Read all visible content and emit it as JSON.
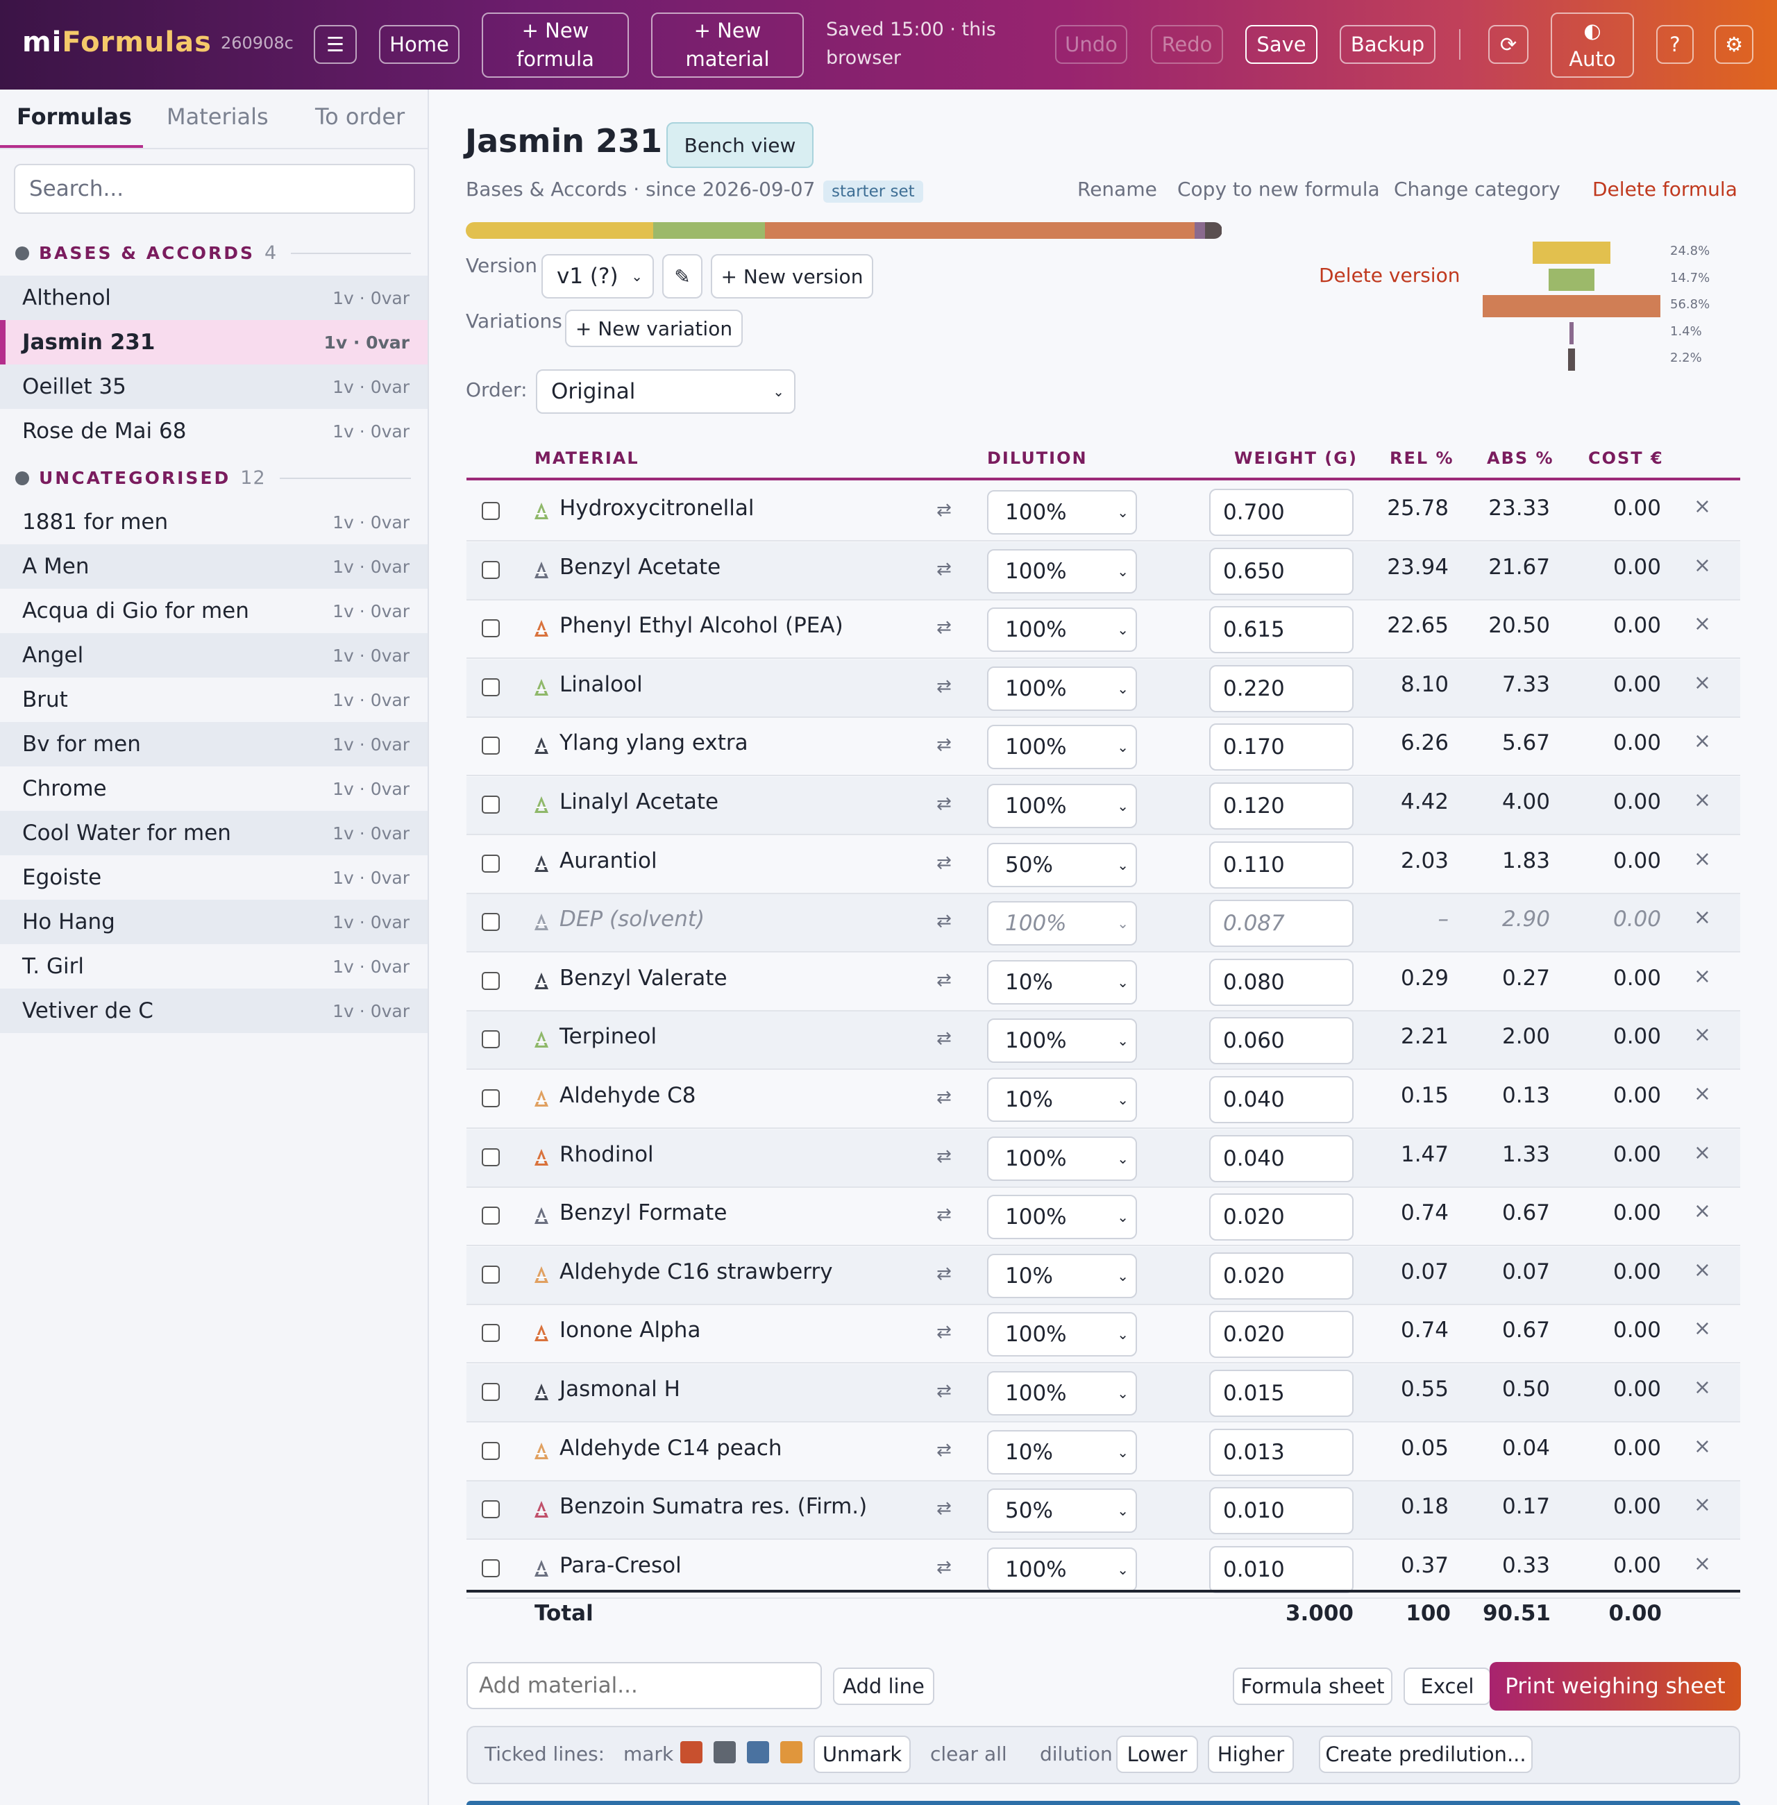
{
  "header": {
    "brand_part1": "mi",
    "brand_part2": "Formulas",
    "build_id": "260908c",
    "menu_icon": "☰",
    "home_label": "Home",
    "new_formula_line1": "+ New",
    "new_formula_line2": "formula",
    "new_material_line1": "+ New",
    "new_material_line2": "material",
    "saved_line1": "Saved 15:00 · this",
    "saved_line2": "browser",
    "undo_label": "Undo",
    "redo_label": "Redo",
    "save_label": "Save",
    "backup_label": "Backup",
    "refresh_icon": "⟳",
    "theme_icon": "◐",
    "theme_label": "Auto",
    "help_label": "?",
    "settings_icon": "⚙"
  },
  "sidebar": {
    "tabs": [
      "Formulas",
      "Materials",
      "To order"
    ],
    "search_placeholder": "Search...",
    "categories": [
      {
        "name": "BASES & ACCORDS",
        "count": "4"
      },
      {
        "name": "UNCATEGORISED",
        "count": "12"
      }
    ],
    "bases": [
      {
        "label": "Althenol",
        "meta": "1v · 0var"
      },
      {
        "label": "Jasmin 231",
        "meta": "1v · 0var"
      },
      {
        "label": "Oeillet 35",
        "meta": "1v · 0var"
      },
      {
        "label": "Rose de Mai 68",
        "meta": "1v · 0var"
      }
    ],
    "uncategorised": [
      {
        "label": "1881 for men",
        "meta": "1v · 0var"
      },
      {
        "label": "A Men",
        "meta": "1v · 0var"
      },
      {
        "label": "Acqua di Gio for men",
        "meta": "1v · 0var"
      },
      {
        "label": "Angel",
        "meta": "1v · 0var"
      },
      {
        "label": "Brut",
        "meta": "1v · 0var"
      },
      {
        "label": "Bv for men",
        "meta": "1v · 0var"
      },
      {
        "label": "Chrome",
        "meta": "1v · 0var"
      },
      {
        "label": "Cool Water for men",
        "meta": "1v · 0var"
      },
      {
        "label": "Egoiste",
        "meta": "1v · 0var"
      },
      {
        "label": "Ho Hang",
        "meta": "1v · 0var"
      },
      {
        "label": "T. Girl",
        "meta": "1v · 0var"
      },
      {
        "label": "Vetiver de C",
        "meta": "1v · 0var"
      }
    ]
  },
  "formula": {
    "title": "Jasmin 231",
    "bench_view": "Bench view",
    "subtitle": "Bases & Accords · since 2026-09-07 ·",
    "tag": "starter set",
    "rename": "Rename",
    "copy": "Copy to new formula",
    "change_category": "Change category",
    "delete_formula": "Delete formula",
    "version_label": "Version",
    "version_value": "v1 (?)",
    "edit_icon": "✎",
    "new_version": "+ New version",
    "delete_version": "Delete version",
    "variations_label": "Variations",
    "new_variation": "+ New variation",
    "order_label": "Order:",
    "order_value": "Original"
  },
  "composition": {
    "colors": [
      "#e2c04e",
      "#9cb96a",
      "#d07e55",
      "#8a6a8e",
      "#5a4f50"
    ],
    "fractions": [
      0.248,
      0.147,
      0.568,
      0.014,
      0.022
    ],
    "labels": [
      "24.8%",
      "14.7%",
      "56.8%",
      "1.4%",
      "2.2%"
    ]
  },
  "table": {
    "headers": {
      "material": "MATERIAL",
      "dilution": "DILUTION",
      "weight": "WEIGHT (G)",
      "rel": "REL %",
      "abs": "ABS %",
      "cost": "COST €"
    },
    "swap_icon": "⇄",
    "remove_icon": "×",
    "rows": [
      {
        "name": "Hydroxycitronellal",
        "icon_color": "#8fb86a",
        "dilution": "100%",
        "weight": "0.700",
        "rel": "25.78",
        "abs": "23.33",
        "cost": "0.00"
      },
      {
        "name": "Benzyl Acetate",
        "icon_color": "#6b7080",
        "dilution": "100%",
        "weight": "0.650",
        "rel": "23.94",
        "abs": "21.67",
        "cost": "0.00"
      },
      {
        "name": "Phenyl Ethyl Alcohol (PEA)",
        "icon_color": "#d9723c",
        "dilution": "100%",
        "weight": "0.615",
        "rel": "22.65",
        "abs": "20.50",
        "cost": "0.00"
      },
      {
        "name": "Linalool",
        "icon_color": "#8fb86a",
        "dilution": "100%",
        "weight": "0.220",
        "rel": "8.10",
        "abs": "7.33",
        "cost": "0.00"
      },
      {
        "name": "Ylang ylang extra",
        "icon_color": "#3f4450",
        "dilution": "100%",
        "weight": "0.170",
        "rel": "6.26",
        "abs": "5.67",
        "cost": "0.00"
      },
      {
        "name": "Linalyl Acetate",
        "icon_color": "#8fb86a",
        "dilution": "100%",
        "weight": "0.120",
        "rel": "4.42",
        "abs": "4.00",
        "cost": "0.00"
      },
      {
        "name": "Aurantiol",
        "icon_color": "#3f4450",
        "dilution": "50%",
        "weight": "0.110",
        "rel": "2.03",
        "abs": "1.83",
        "cost": "0.00"
      },
      {
        "name": "DEP (solvent)",
        "icon_color": "#9aa0ac",
        "dilution": "100%",
        "weight": "0.087",
        "rel": "–",
        "abs": "2.90",
        "cost": "0.00",
        "solvent": true
      },
      {
        "name": "Benzyl Valerate",
        "icon_color": "#3f4450",
        "dilution": "10%",
        "weight": "0.080",
        "rel": "0.29",
        "abs": "0.27",
        "cost": "0.00"
      },
      {
        "name": "Terpineol",
        "icon_color": "#8fb86a",
        "dilution": "100%",
        "weight": "0.060",
        "rel": "2.21",
        "abs": "2.00",
        "cost": "0.00"
      },
      {
        "name": "Aldehyde C8",
        "icon_color": "#e0a060",
        "dilution": "10%",
        "weight": "0.040",
        "rel": "0.15",
        "abs": "0.13",
        "cost": "0.00"
      },
      {
        "name": "Rhodinol",
        "icon_color": "#d9723c",
        "dilution": "100%",
        "weight": "0.040",
        "rel": "1.47",
        "abs": "1.33",
        "cost": "0.00"
      },
      {
        "name": "Benzyl Formate",
        "icon_color": "#6b7080",
        "dilution": "100%",
        "weight": "0.020",
        "rel": "0.74",
        "abs": "0.67",
        "cost": "0.00"
      },
      {
        "name": "Aldehyde C16 strawberry",
        "icon_color": "#e0a060",
        "dilution": "10%",
        "weight": "0.020",
        "rel": "0.07",
        "abs": "0.07",
        "cost": "0.00"
      },
      {
        "name": "Ionone Alpha",
        "icon_color": "#d9723c",
        "dilution": "100%",
        "weight": "0.020",
        "rel": "0.74",
        "abs": "0.67",
        "cost": "0.00"
      },
      {
        "name": "Jasmonal H",
        "icon_color": "#3f4450",
        "dilution": "100%",
        "weight": "0.015",
        "rel": "0.55",
        "abs": "0.50",
        "cost": "0.00"
      },
      {
        "name": "Aldehyde C14 peach",
        "icon_color": "#e0a060",
        "dilution": "10%",
        "weight": "0.013",
        "rel": "0.05",
        "abs": "0.04",
        "cost": "0.00"
      },
      {
        "name": "Benzoin Sumatra res. (Firm.)",
        "icon_color": "#c0506a",
        "dilution": "50%",
        "weight": "0.010",
        "rel": "0.18",
        "abs": "0.17",
        "cost": "0.00"
      },
      {
        "name": "Para-Cresol",
        "icon_color": "#6b7080",
        "dilution": "100%",
        "weight": "0.010",
        "rel": "0.37",
        "abs": "0.33",
        "cost": "0.00"
      }
    ],
    "total": {
      "label": "Total",
      "weight": "3.000",
      "rel": "100",
      "abs": "90.51",
      "cost": "0.00"
    }
  },
  "actions": {
    "add_placeholder": "Add material...",
    "add_line": "Add line",
    "formula_sheet": "Formula sheet",
    "excel": "Excel",
    "print": "Print weighing sheet"
  },
  "ticked": {
    "label": "Ticked lines:",
    "mark": "mark",
    "mark_colors": [
      "#c8502e",
      "#5f6670",
      "#4a72a0",
      "#e0963c"
    ],
    "unmark": "Unmark",
    "clear_all": "clear all",
    "dilution": "dilution",
    "lower": "Lower",
    "higher": "Higher",
    "predilution": "Create predilution..."
  }
}
